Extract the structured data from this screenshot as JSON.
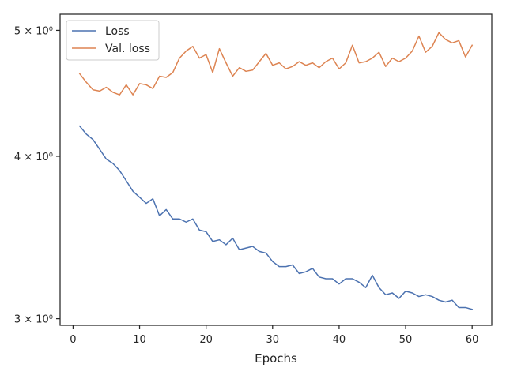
{
  "chart_data": {
    "type": "line",
    "title": "",
    "xlabel": "Epochs",
    "ylabel": "",
    "xlim": [
      -1.95,
      62.95
    ],
    "ylim": [
      2.965,
      5.145
    ],
    "yscale": "log",
    "x_ticks": [
      0,
      10,
      20,
      30,
      40,
      50,
      60
    ],
    "y_ticks": [
      {
        "value": 3,
        "label": "3 × 10⁰"
      },
      {
        "value": 4,
        "label": "4 × 10⁰"
      },
      {
        "value": 5,
        "label": "5 × 10⁰"
      }
    ],
    "grid": false,
    "legend": {
      "position": "top-left"
    },
    "x": [
      1,
      2,
      3,
      4,
      5,
      6,
      7,
      8,
      9,
      10,
      11,
      12,
      13,
      14,
      15,
      16,
      17,
      18,
      19,
      20,
      21,
      22,
      23,
      24,
      25,
      26,
      27,
      28,
      29,
      30,
      31,
      32,
      33,
      34,
      35,
      36,
      37,
      38,
      39,
      40,
      41,
      42,
      43,
      44,
      45,
      46,
      47,
      48,
      49,
      50,
      51,
      52,
      53,
      54,
      55,
      56,
      57,
      58,
      59,
      60
    ],
    "series": [
      {
        "name": "Loss",
        "color": "#4c72b0",
        "values": [
          4.22,
          4.16,
          4.12,
          4.05,
          3.98,
          3.95,
          3.9,
          3.83,
          3.76,
          3.72,
          3.68,
          3.71,
          3.6,
          3.64,
          3.58,
          3.58,
          3.56,
          3.58,
          3.51,
          3.5,
          3.44,
          3.45,
          3.42,
          3.46,
          3.39,
          3.4,
          3.41,
          3.38,
          3.37,
          3.32,
          3.29,
          3.29,
          3.3,
          3.25,
          3.26,
          3.28,
          3.23,
          3.22,
          3.22,
          3.19,
          3.22,
          3.22,
          3.2,
          3.17,
          3.24,
          3.17,
          3.13,
          3.14,
          3.11,
          3.15,
          3.14,
          3.12,
          3.13,
          3.12,
          3.1,
          3.09,
          3.1,
          3.06,
          3.06,
          3.05
        ]
      },
      {
        "name": "Val. loss",
        "color": "#dd8452",
        "values": [
          4.63,
          4.56,
          4.5,
          4.49,
          4.52,
          4.48,
          4.46,
          4.54,
          4.46,
          4.55,
          4.54,
          4.51,
          4.61,
          4.6,
          4.64,
          4.76,
          4.82,
          4.86,
          4.76,
          4.79,
          4.64,
          4.84,
          4.72,
          4.61,
          4.68,
          4.65,
          4.66,
          4.73,
          4.8,
          4.7,
          4.72,
          4.67,
          4.69,
          4.73,
          4.7,
          4.72,
          4.68,
          4.73,
          4.76,
          4.67,
          4.72,
          4.87,
          4.72,
          4.73,
          4.76,
          4.81,
          4.69,
          4.76,
          4.73,
          4.76,
          4.82,
          4.95,
          4.81,
          4.86,
          4.98,
          4.92,
          4.89,
          4.91,
          4.77,
          4.87
        ]
      }
    ]
  }
}
